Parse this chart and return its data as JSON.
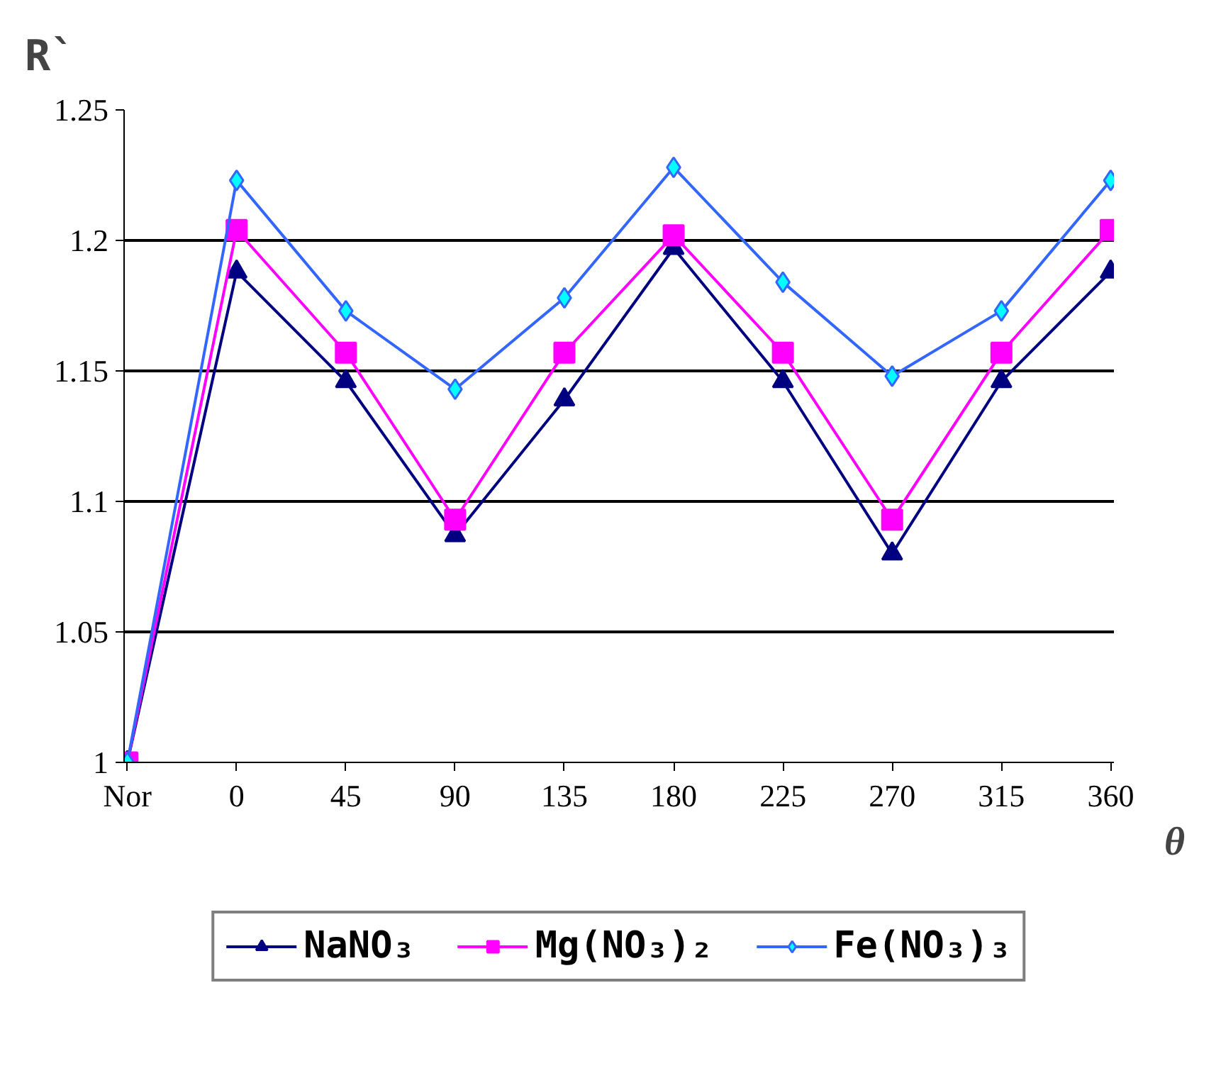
{
  "chart_data": {
    "type": "line",
    "xlabel": "θ",
    "ylabel": "R`",
    "categories": [
      "Nor",
      "0",
      "45",
      "90",
      "135",
      "180",
      "225",
      "270",
      "315",
      "360"
    ],
    "series": [
      {
        "name": "NaNO₃",
        "color": "#000080",
        "marker": "triangle",
        "values": [
          1,
          1.188,
          1.146,
          1.087,
          1.139,
          1.197,
          1.146,
          1.08,
          1.146,
          1.188
        ]
      },
      {
        "name": "Mg(NO₃)₂",
        "color": "#ff00ff",
        "marker": "square",
        "values": [
          1,
          1.204,
          1.157,
          1.093,
          1.157,
          1.202,
          1.157,
          1.093,
          1.157,
          1.204
        ]
      },
      {
        "name": "Fe(NO₃)₃",
        "color": "#3366ff",
        "marker": "diamond",
        "values": [
          1,
          1.223,
          1.173,
          1.143,
          1.178,
          1.228,
          1.184,
          1.148,
          1.173,
          1.223
        ]
      }
    ],
    "ylim": [
      1,
      1.25
    ],
    "yticks": [
      1,
      1.05,
      1.1,
      1.15,
      1.2,
      1.25
    ],
    "grid": "y",
    "legend": "bottom",
    "line_style": "solid"
  }
}
